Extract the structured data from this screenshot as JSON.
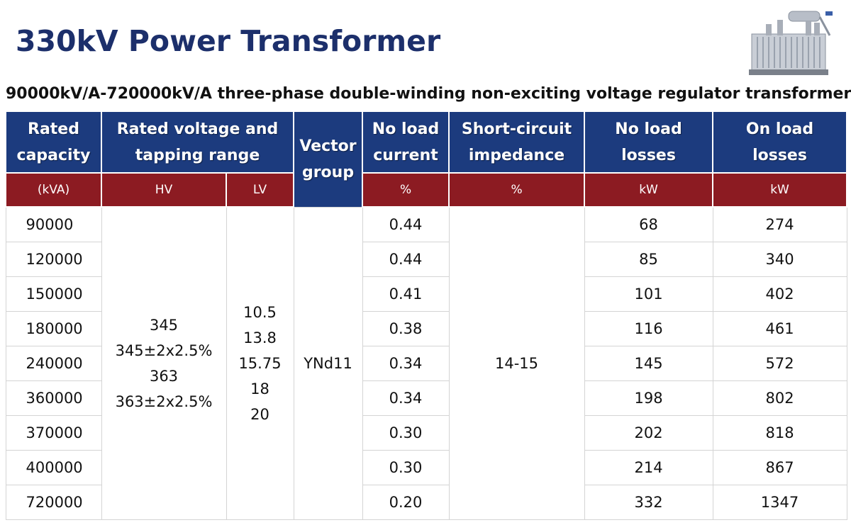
{
  "title": "330kV Power Transformer",
  "subtitle": "90000kV/A-720000kV/A three-phase double-winding non-exciting voltage regulator transformer",
  "colors": {
    "title": "#1c2f6b",
    "header_blue": "#1c3b7e",
    "header_red": "#8c1b22"
  },
  "image": {
    "icon": "power-transformer-photo"
  },
  "table": {
    "headers": {
      "rated_capacity": [
        "Rated",
        "capacity"
      ],
      "rated_voltage": [
        "Rated voltage and",
        "tapping range"
      ],
      "vector_group": [
        "Vector",
        "group"
      ],
      "no_load_current": [
        "No load",
        "current"
      ],
      "short_circuit": [
        "Short-circuit",
        "impedance"
      ],
      "no_load_losses": [
        "No load",
        "losses"
      ],
      "on_load_losses": [
        "On load",
        "losses"
      ]
    },
    "units": {
      "capacity": "(kVA)",
      "hv": "HV",
      "lv": "LV",
      "current": "%",
      "impedance": "%",
      "no_load_losses": "kW",
      "on_load_losses": "kW"
    },
    "hv_values": [
      "345",
      "345±2x2.5%",
      "363",
      "363±2x2.5%"
    ],
    "lv_values": [
      "10.5",
      "13.8",
      "15.75",
      "18",
      "20"
    ],
    "vector_group": "YNd11",
    "impedance": "14-15",
    "rows": [
      {
        "capacity": "90000",
        "current": "0.44",
        "no_load": "68",
        "on_load": "274"
      },
      {
        "capacity": "120000",
        "current": "0.44",
        "no_load": "85",
        "on_load": "340"
      },
      {
        "capacity": "150000",
        "current": "0.41",
        "no_load": "101",
        "on_load": "402"
      },
      {
        "capacity": "180000",
        "current": "0.38",
        "no_load": "116",
        "on_load": "461"
      },
      {
        "capacity": "240000",
        "current": "0.34",
        "no_load": "145",
        "on_load": "572"
      },
      {
        "capacity": "360000",
        "current": "0.34",
        "no_load": "198",
        "on_load": "802"
      },
      {
        "capacity": "370000",
        "current": "0.30",
        "no_load": "202",
        "on_load": "818"
      },
      {
        "capacity": "400000",
        "current": "0.30",
        "no_load": "214",
        "on_load": "867"
      },
      {
        "capacity": "720000",
        "current": "0.20",
        "no_load": "332",
        "on_load": "1347"
      }
    ]
  }
}
